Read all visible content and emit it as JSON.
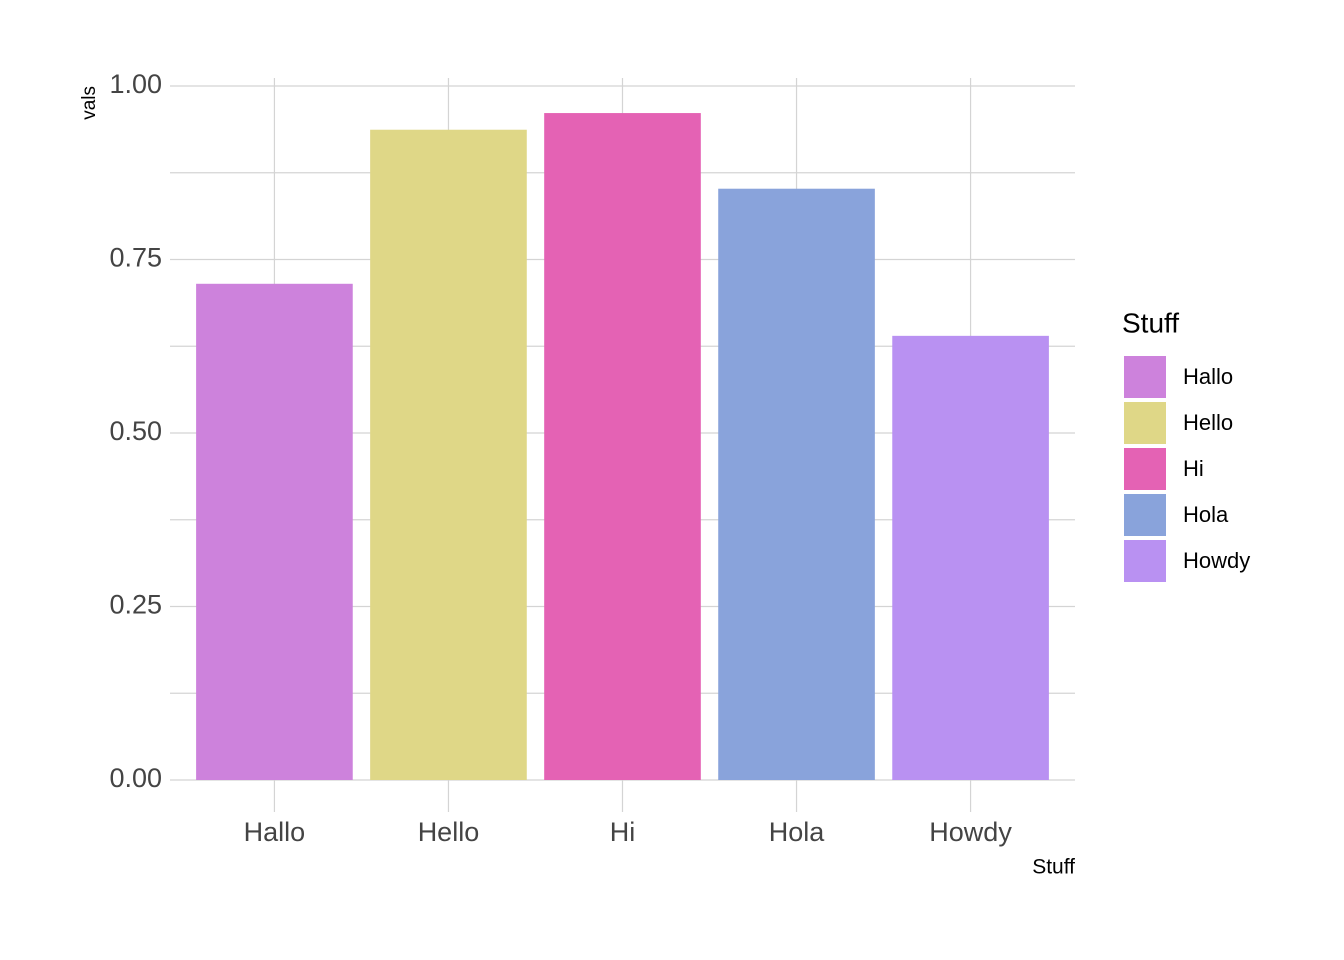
{
  "chart_data": {
    "type": "bar",
    "x_label": "Stuff",
    "y_label": "vals",
    "legend_title": "Stuff",
    "categories": [
      "Hallo",
      "Hello",
      "Hi",
      "Hola",
      "Howdy"
    ],
    "values": [
      0.715,
      0.937,
      0.961,
      0.852,
      0.64
    ],
    "colors": [
      "#cd82dc",
      "#dfd787",
      "#e462b4",
      "#89a3db",
      "#b991f2"
    ],
    "ylim": [
      0,
      1
    ],
    "yticks": [
      {
        "value": 0,
        "label": "0.00"
      },
      {
        "value": 0.25,
        "label": "0.25"
      },
      {
        "value": 0.5,
        "label": "0.50"
      },
      {
        "value": 0.75,
        "label": "0.75"
      },
      {
        "value": 1,
        "label": "1.00"
      }
    ],
    "grid": true,
    "legend": "right"
  }
}
